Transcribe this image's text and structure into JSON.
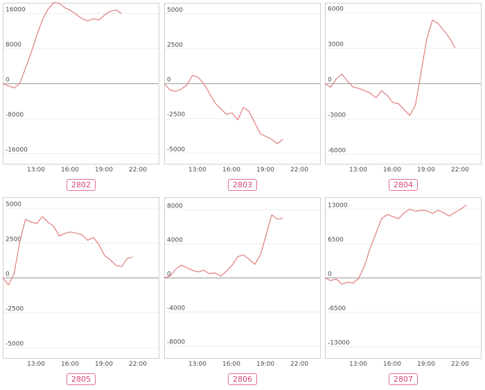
{
  "chart_data": [
    {
      "type": "line",
      "label": "2802",
      "yticks": [
        16000,
        8000,
        0,
        -8000,
        -16000
      ],
      "ylim": [
        -17500,
        17500
      ],
      "xticks": [
        "13:00",
        "16:00",
        "19:00",
        "22:00"
      ],
      "x": [
        "10:00",
        "10:30",
        "11:00",
        "11:30",
        "12:00",
        "12:30",
        "13:00",
        "13:30",
        "14:00",
        "14:30",
        "15:00",
        "15:30",
        "16:00",
        "16:30",
        "17:00",
        "17:30",
        "18:00",
        "18:30",
        "19:00",
        "19:30",
        "20:00",
        "20:30",
        "21:00",
        "21:30"
      ],
      "values": [
        0,
        -500,
        -1000,
        0,
        3500,
        7000,
        11000,
        14500,
        17000,
        18500,
        18300,
        17300,
        16700,
        15800,
        14800,
        14300,
        14800,
        14500,
        15700,
        16500,
        16800,
        16000,
        null,
        null
      ]
    },
    {
      "type": "line",
      "label": "2803",
      "yticks": [
        5000,
        2500,
        0,
        -2500,
        -5000
      ],
      "ylim": [
        -5500,
        5500
      ],
      "xticks": [
        "13:00",
        "16:00",
        "19:00",
        "22:00"
      ],
      "x": [
        "10:00",
        "10:30",
        "11:00",
        "11:30",
        "12:00",
        "12:30",
        "13:00",
        "13:30",
        "14:00",
        "14:30",
        "15:00",
        "15:30",
        "16:00",
        "16:30",
        "17:00",
        "17:30",
        "18:00",
        "18:30",
        "19:00",
        "19:30",
        "20:00",
        "20:30",
        "21:00"
      ],
      "values": [
        0,
        -450,
        -550,
        -400,
        -100,
        600,
        450,
        0,
        -700,
        -1400,
        -1800,
        -2200,
        -2100,
        -2600,
        -1700,
        -2000,
        -2800,
        -3600,
        -3800,
        -4000,
        -4300,
        -4000,
        null
      ]
    },
    {
      "type": "line",
      "label": "2804",
      "yticks": [
        6000,
        3000,
        0,
        -3000,
        -6000
      ],
      "ylim": [
        -6500,
        6500
      ],
      "xticks": [
        "13:00",
        "16:00",
        "19:00",
        "22:00"
      ],
      "x": [
        "10:00",
        "10:30",
        "11:00",
        "11:30",
        "12:00",
        "12:30",
        "13:00",
        "13:30",
        "14:00",
        "14:30",
        "15:00",
        "15:30",
        "16:00",
        "16:30",
        "17:00",
        "17:30",
        "18:00",
        "18:30",
        "19:00",
        "19:30",
        "20:00",
        "20:30",
        "21:00",
        "21:30",
        "22:00"
      ],
      "values": [
        0,
        -300,
        400,
        800,
        200,
        -300,
        -400,
        -600,
        -800,
        -1200,
        -600,
        -1000,
        -1600,
        -1700,
        -2200,
        -2700,
        -1800,
        1000,
        3800,
        5400,
        5100,
        4500,
        3900,
        3000,
        null
      ]
    },
    {
      "type": "line",
      "label": "2805",
      "yticks": [
        5000,
        2500,
        0,
        -2500,
        -5000
      ],
      "ylim": [
        -5500,
        5500
      ],
      "xticks": [
        "13:00",
        "16:00",
        "19:00",
        "22:00"
      ],
      "x": [
        "10:00",
        "10:30",
        "11:00",
        "11:30",
        "12:00",
        "12:30",
        "13:00",
        "13:30",
        "14:00",
        "14:30",
        "15:00",
        "15:30",
        "16:00",
        "16:30",
        "17:00",
        "17:30",
        "18:00",
        "18:30",
        "19:00",
        "19:30",
        "20:00",
        "20:30",
        "21:00",
        "21:30",
        "22:00"
      ],
      "values": [
        0,
        -500,
        300,
        2600,
        4200,
        4000,
        3900,
        4400,
        4000,
        3700,
        3000,
        3200,
        3300,
        3200,
        3100,
        2700,
        2900,
        2400,
        1600,
        1300,
        900,
        800,
        1400,
        1500,
        null
      ]
    },
    {
      "type": "line",
      "label": "2806",
      "yticks": [
        8000,
        4000,
        0,
        -4000,
        -8000
      ],
      "ylim": [
        -9000,
        9000
      ],
      "xticks": [
        "13:00",
        "16:00",
        "19:00",
        "22:00"
      ],
      "x": [
        "10:00",
        "10:30",
        "11:00",
        "11:30",
        "12:00",
        "12:30",
        "13:00",
        "13:30",
        "14:00",
        "14:30",
        "15:00",
        "15:30",
        "16:00",
        "16:30",
        "17:00",
        "17:30",
        "18:00",
        "18:30",
        "19:00",
        "19:30",
        "20:00",
        "20:30",
        "21:00"
      ],
      "values": [
        0,
        200,
        1000,
        1500,
        1200,
        900,
        700,
        900,
        500,
        600,
        200,
        800,
        1500,
        2500,
        2700,
        2200,
        1600,
        2700,
        5000,
        7400,
        6900,
        7000,
        null
      ]
    },
    {
      "type": "line",
      "label": "2807",
      "yticks": [
        13000,
        6500,
        0,
        -6500,
        -13000
      ],
      "ylim": [
        -14500,
        14500
      ],
      "xticks": [
        "13:00",
        "16:00",
        "19:00",
        "22:00"
      ],
      "x": [
        "10:00",
        "10:30",
        "11:00",
        "11:30",
        "12:00",
        "12:30",
        "13:00",
        "13:30",
        "14:00",
        "14:30",
        "15:00",
        "15:30",
        "16:00",
        "16:30",
        "17:00",
        "17:30",
        "18:00",
        "18:30",
        "19:00",
        "19:30",
        "20:00",
        "20:30",
        "21:00",
        "21:30",
        "22:00",
        "22:30"
      ],
      "values": [
        0,
        -500,
        -200,
        -1200,
        -800,
        -1000,
        0,
        2300,
        5700,
        8400,
        11200,
        12000,
        11600,
        11200,
        12300,
        13000,
        12600,
        12800,
        12700,
        12200,
        12800,
        12300,
        11700,
        12400,
        13000,
        13800
      ]
    }
  ],
  "colors": {
    "line": "#e07b7b",
    "zero": "#a8a8a8",
    "grid": "#ececec",
    "tick": "#4a4a4a",
    "frame": "#cfcfcf",
    "tag": "#d6457a"
  }
}
